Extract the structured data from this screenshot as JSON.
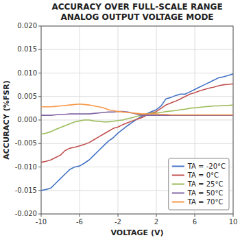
{
  "chart_data": {
    "type": "line",
    "title": "ACCURACY OVER FULL-SCALE RANGE",
    "subtitle": "ANALOG OUTPUT VOLTAGE MODE",
    "x_label": "VOLTAGE (V)",
    "y_label": "ACCURACY (%FSR)",
    "xlim": [
      -10,
      10
    ],
    "ylim": [
      -0.02,
      0.02
    ],
    "xticks": [
      -10,
      -6,
      -2,
      2,
      6,
      10
    ],
    "yticks": [
      {
        "value": -0.02,
        "label": "-0.020"
      },
      {
        "value": -0.015,
        "label": "-0.015"
      },
      {
        "value": -0.01,
        "label": "-0.010"
      },
      {
        "value": -0.005,
        "label": "-0.005"
      },
      {
        "value": 0.0,
        "label": "0.000"
      },
      {
        "value": 0.005,
        "label": "0.005"
      },
      {
        "value": 0.01,
        "label": "0.010"
      },
      {
        "value": 0.015,
        "label": "0.015"
      },
      {
        "value": 0.02,
        "label": "0.020"
      }
    ],
    "grid": true,
    "legend": "lower right",
    "x": [
      -10,
      -9.5,
      -9,
      -8.5,
      -8,
      -7.5,
      -7,
      -6.5,
      -6,
      -5.5,
      -5,
      -4.5,
      -4,
      -3.5,
      -3,
      -2.5,
      -2,
      -1.5,
      -1,
      -0.5,
      0,
      0.5,
      1,
      1.5,
      2,
      2.5,
      3,
      3.5,
      4,
      4.5,
      5,
      5.5,
      6,
      6.5,
      7,
      7.5,
      8,
      8.5,
      9,
      9.5,
      10
    ],
    "series": [
      {
        "name": "TA = -20°C",
        "color": "#4472C4",
        "values": [
          -0.015,
          -0.0148,
          -0.0145,
          -0.0135,
          -0.0125,
          -0.0115,
          -0.0105,
          -0.01,
          -0.0098,
          -0.0092,
          -0.0085,
          -0.0075,
          -0.0065,
          -0.0055,
          -0.0045,
          -0.0038,
          -0.0028,
          -0.002,
          -0.0012,
          -0.0005,
          0.0002,
          0.0008,
          0.0013,
          0.0018,
          0.0022,
          0.003,
          0.0045,
          0.0048,
          0.0052,
          0.0055,
          0.0055,
          0.006,
          0.0065,
          0.007,
          0.0075,
          0.008,
          0.0085,
          0.009,
          0.0092,
          0.0095,
          0.0098
        ]
      },
      {
        "name": "TA = 0°C",
        "color": "#C0504D",
        "values": [
          -0.009,
          -0.0088,
          -0.0085,
          -0.008,
          -0.0075,
          -0.0065,
          -0.006,
          -0.0058,
          -0.0055,
          -0.0052,
          -0.0048,
          -0.0042,
          -0.0036,
          -0.003,
          -0.0024,
          -0.0018,
          -0.0015,
          -0.001,
          -0.0006,
          -0.0002,
          0.0002,
          0.0005,
          0.001,
          0.0015,
          0.0018,
          0.0025,
          0.0032,
          0.0036,
          0.004,
          0.0045,
          0.005,
          0.0055,
          0.0058,
          0.0062,
          0.0065,
          0.0068,
          0.007,
          0.0073,
          0.0075,
          0.0076,
          0.0077
        ]
      },
      {
        "name": "TA = 25°C",
        "color": "#9BBB59",
        "values": [
          -0.003,
          -0.0028,
          -0.0025,
          -0.002,
          -0.0016,
          -0.0012,
          -0.0008,
          -0.0004,
          -0.0002,
          0.0,
          0.0,
          -0.0002,
          -0.0003,
          -0.0004,
          -0.0004,
          -0.0003,
          -0.0001,
          0.0,
          0.0003,
          0.0005,
          0.0008,
          0.001,
          0.0012,
          0.0014,
          0.0015,
          0.0016,
          0.0018,
          0.0019,
          0.002,
          0.0022,
          0.0023,
          0.0025,
          0.0026,
          0.0027,
          0.0028,
          0.0029,
          0.003,
          0.003,
          0.0031,
          0.0031,
          0.0032
        ]
      },
      {
        "name": "TA = 50°C",
        "color": "#8064A2",
        "values": [
          0.001,
          0.001,
          0.001,
          0.0011,
          0.0012,
          0.0012,
          0.0013,
          0.0013,
          0.0013,
          0.0013,
          0.0013,
          0.0014,
          0.0015,
          0.0016,
          0.0017,
          0.0017,
          0.0018,
          0.0018,
          0.0017,
          0.0015,
          0.0012,
          0.001,
          0.001,
          0.001,
          0.001,
          0.001,
          0.001,
          0.001,
          0.001,
          0.001,
          0.001,
          0.001,
          0.001,
          0.001,
          0.001,
          0.001,
          0.001,
          0.001,
          0.001,
          0.001,
          0.001
        ]
      },
      {
        "name": "TA = 70°C",
        "color": "#F79646",
        "values": [
          0.0028,
          0.0028,
          0.0028,
          0.0029,
          0.003,
          0.0031,
          0.0032,
          0.0033,
          0.0034,
          0.0033,
          0.0032,
          0.003,
          0.0028,
          0.0026,
          0.0022,
          0.002,
          0.0018,
          0.0017,
          0.0016,
          0.0015,
          0.0014,
          0.0013,
          0.0013,
          0.0013,
          0.0013,
          0.0012,
          0.0012,
          0.0011,
          0.0011,
          0.0011,
          0.0011,
          0.0011,
          0.0011,
          0.0011,
          0.0011,
          0.0011,
          0.0011,
          0.0011,
          0.0011,
          0.0011,
          0.0011
        ]
      }
    ]
  }
}
